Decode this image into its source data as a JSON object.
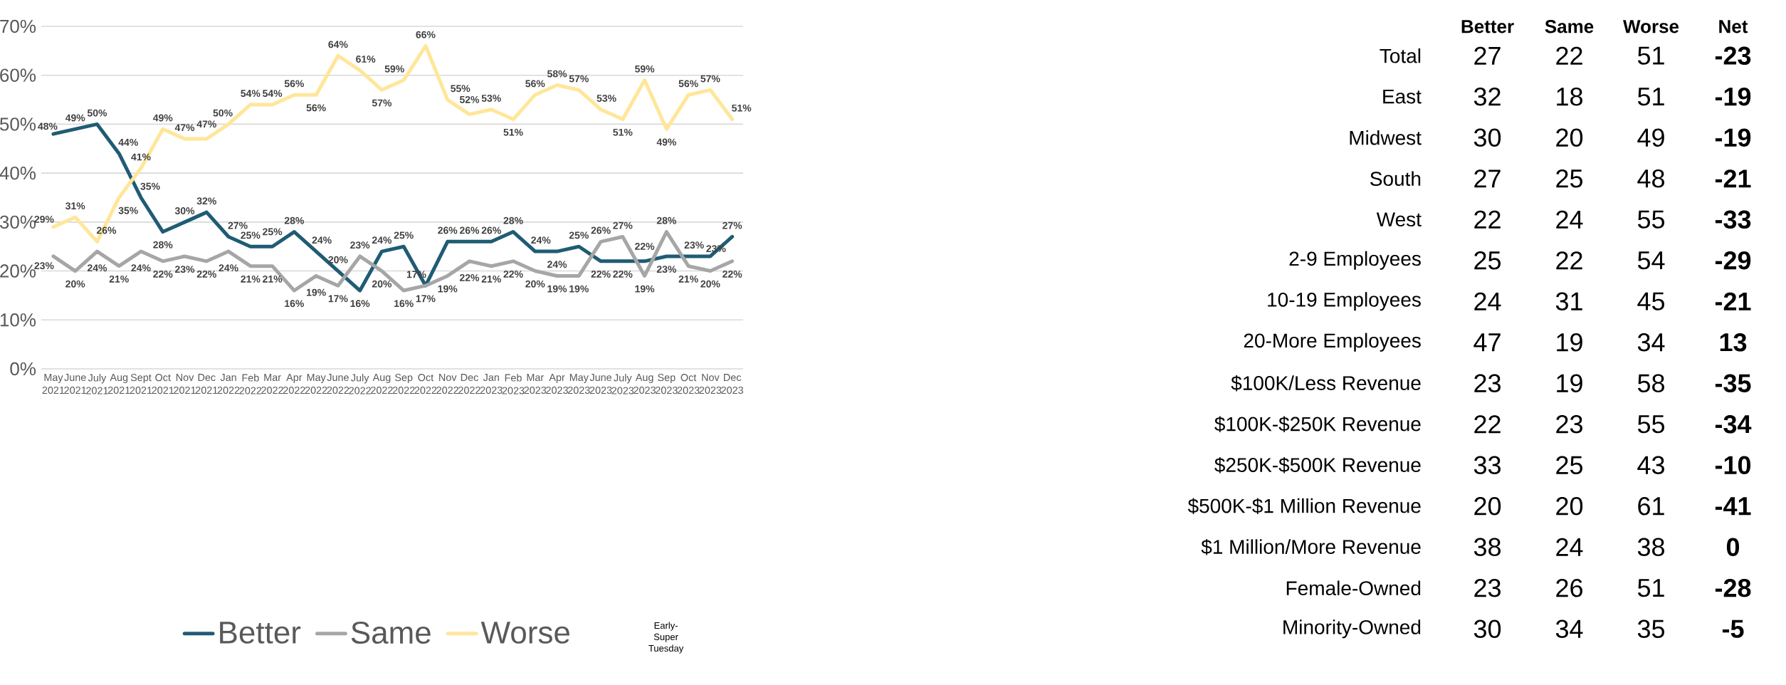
{
  "chart_data": [
    {
      "type": "line",
      "categories": [
        "May 2021",
        "June 2021",
        "July 2021",
        "Aug 2021",
        "Sept 2021",
        "Oct 2021",
        "Nov 2021",
        "Dec 2021",
        "Jan 2022",
        "Feb 2022",
        "Mar 2022",
        "Apr 2022",
        "May 2022",
        "June 2022",
        "July 2022",
        "Aug 2022",
        "Sep 2022",
        "Oct 2022",
        "Nov 2022",
        "Dec 2022",
        "Jan 2023",
        "Feb 2023",
        "Mar 2023",
        "Apr 2023",
        "May 2023",
        "June 2023",
        "July 2023",
        "Aug 2023",
        "Sep 2023",
        "Oct 2023",
        "Nov 2023",
        "Dec 2023"
      ],
      "series": [
        {
          "name": "Better",
          "color": "#1f5c74",
          "values": [
            48,
            49,
            50,
            44,
            35,
            28,
            30,
            32,
            27,
            25,
            25,
            28,
            24,
            20,
            16,
            24,
            25,
            17,
            26,
            26,
            26,
            28,
            24,
            24,
            25,
            22,
            22,
            22,
            23,
            23,
            23,
            27
          ],
          "value_labels": [
            "48%",
            "49%",
            "50%",
            "44%",
            "35%",
            "28%",
            "30%",
            "32%",
            "27%",
            "25%",
            "25%",
            "28%",
            "24%",
            "20%",
            "16%",
            "24%",
            "25%",
            "17%",
            "26%",
            "26%",
            "26%",
            "28%",
            "24%",
            "24%",
            "25%",
            "22%",
            "22%",
            "22%",
            "23%",
            "23%",
            "23%",
            "27%"
          ]
        },
        {
          "name": "Same",
          "color": "#a6a6a6",
          "values": [
            23,
            20,
            24,
            21,
            24,
            22,
            23,
            22,
            24,
            21,
            21,
            16,
            19,
            17,
            23,
            20,
            16,
            17,
            19,
            22,
            21,
            22,
            20,
            19,
            19,
            26,
            27,
            19,
            28,
            21,
            20,
            22
          ],
          "value_labels": [
            "23%",
            "20%",
            "24%",
            "21%",
            "24%",
            "22%",
            "23%",
            "22%",
            "24%",
            "21%",
            "21%",
            "16%",
            "19%",
            "17%",
            "23%",
            "20%",
            "16%",
            "17%",
            "19%",
            "22%",
            "21%",
            "22%",
            "20%",
            "19%",
            "19%",
            "26%",
            "27%",
            "19%",
            "28%",
            "21%",
            "20%",
            "22%"
          ]
        },
        {
          "name": "Worse",
          "color": "#ffe699",
          "values": [
            29,
            31,
            26,
            35,
            41,
            49,
            47,
            47,
            50,
            54,
            54,
            56,
            56,
            64,
            61,
            57,
            59,
            66,
            55,
            52,
            53,
            51,
            56,
            58,
            57,
            53,
            51,
            59,
            49,
            56,
            57,
            51
          ],
          "value_labels": [
            "29%",
            "31%",
            "26%",
            "35%",
            "41%",
            "49%",
            "47%",
            "47%",
            "50%",
            "54%",
            "54%",
            "56%",
            "56%",
            "64%",
            "61%",
            "57%",
            "59%",
            "66%",
            "55%",
            "52%",
            "53%",
            "51%",
            "56%",
            "58%",
            "57%",
            "53%",
            "51%",
            "59%",
            "49%",
            "56%",
            "57%",
            "51%"
          ]
        }
      ],
      "ylim": [
        0,
        70
      ],
      "yticks": [
        {
          "value": 0,
          "label": "0%"
        },
        {
          "value": 10,
          "label": "10%"
        },
        {
          "value": 20,
          "label": "20%"
        },
        {
          "value": 30,
          "label": "30%"
        },
        {
          "value": 40,
          "label": "40%"
        },
        {
          "value": 50,
          "label": "50%"
        },
        {
          "value": 60,
          "label": "60%"
        },
        {
          "value": 70,
          "label": "70%"
        }
      ],
      "grid": "y",
      "legend": "bottom",
      "annotations": [
        "Early-Super Tuesday"
      ]
    },
    {
      "type": "heatmap",
      "categories": [
        "Better",
        "Same",
        "Worse",
        "Net"
      ],
      "y_categories": [
        "Total",
        "East",
        "Midwest",
        "South",
        "West",
        "2-9 Employees",
        "10-19 Employees",
        "20-More Employees",
        "$100K/Less Revenue",
        "$100K-$250K Revenue",
        "$250K-$500K Revenue",
        "$500K-$1 Million Revenue",
        "$1 Million/More Revenue",
        "Female-Owned",
        "Minority-Owned"
      ],
      "cells": [
        [
          27,
          22,
          51,
          -23
        ],
        [
          32,
          18,
          51,
          -19
        ],
        [
          30,
          20,
          49,
          -19
        ],
        [
          27,
          25,
          48,
          -21
        ],
        [
          22,
          24,
          55,
          -33
        ],
        [
          25,
          22,
          54,
          -29
        ],
        [
          24,
          31,
          45,
          -21
        ],
        [
          47,
          19,
          34,
          13
        ],
        [
          23,
          19,
          58,
          -35
        ],
        [
          22,
          23,
          55,
          -34
        ],
        [
          33,
          25,
          43,
          -10
        ],
        [
          20,
          20,
          61,
          -41
        ],
        [
          38,
          24,
          38,
          0
        ],
        [
          23,
          26,
          51,
          -28
        ],
        [
          30,
          34,
          35,
          -5
        ]
      ],
      "data_labels": true
    }
  ]
}
